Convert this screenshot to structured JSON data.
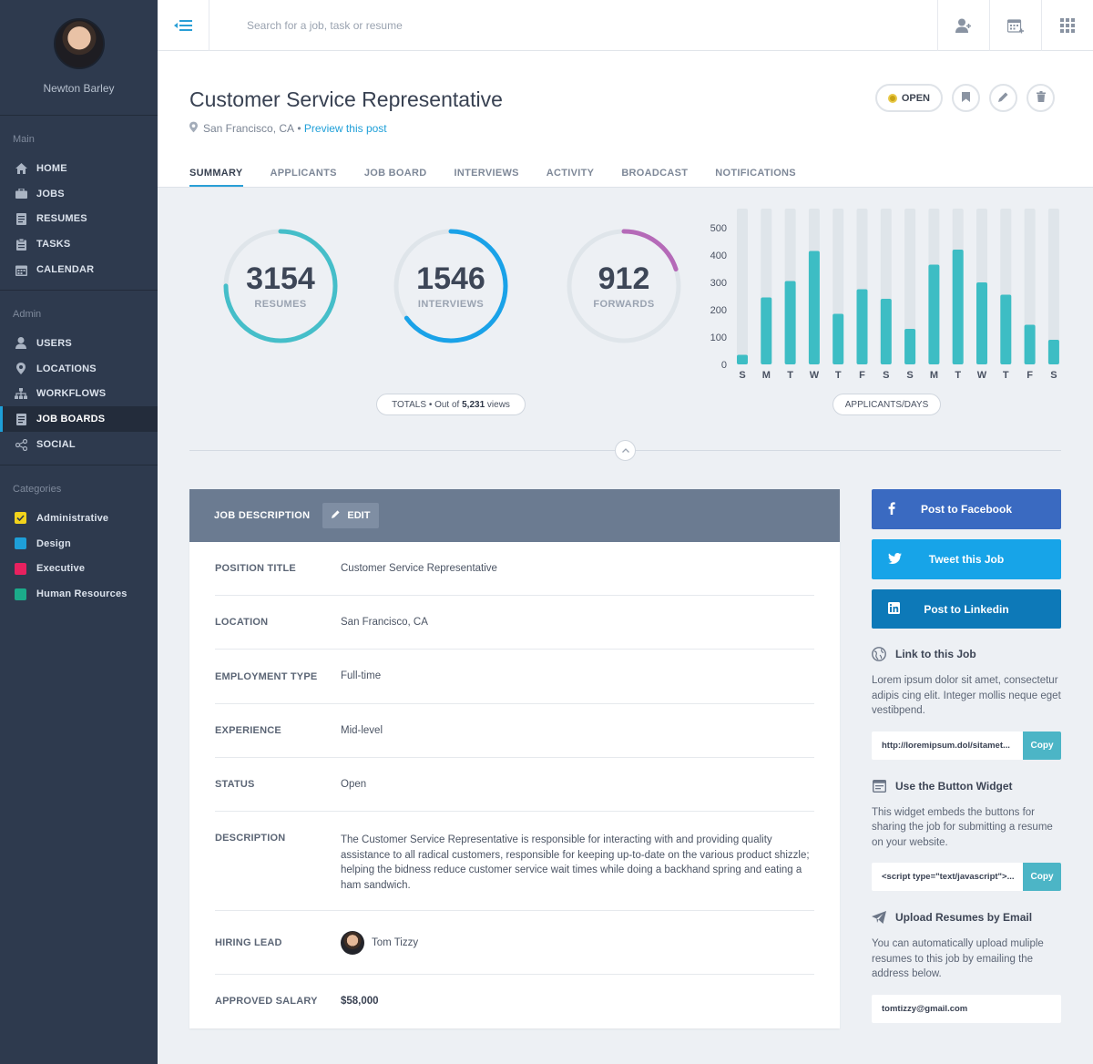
{
  "sidebar": {
    "user_name": "Newton Barley",
    "sections": {
      "main": {
        "heading": "Main",
        "items": [
          {
            "label": "HOME",
            "icon": "home-icon"
          },
          {
            "label": "JOBS",
            "icon": "briefcase-icon"
          },
          {
            "label": "RESUMES",
            "icon": "document-icon"
          },
          {
            "label": "TASKS",
            "icon": "clipboard-icon"
          },
          {
            "label": "CALENDAR",
            "icon": "calendar-icon"
          }
        ]
      },
      "admin": {
        "heading": "Admin",
        "items": [
          {
            "label": "USERS",
            "icon": "user-icon"
          },
          {
            "label": "LOCATIONS",
            "icon": "location-pin-icon"
          },
          {
            "label": "WORKFLOWS",
            "icon": "sitemap-icon"
          },
          {
            "label": "JOB BOARDS",
            "icon": "document-icon",
            "active": true
          },
          {
            "label": "SOCIAL",
            "icon": "share-icon"
          }
        ]
      },
      "categories": {
        "heading": "Categories",
        "items": [
          {
            "label": "Administrative",
            "color": "#f2d31b",
            "checked": true
          },
          {
            "label": "Design",
            "color": "#1e9fd8"
          },
          {
            "label": "Executive",
            "color": "#e8215f"
          },
          {
            "label": "Human Resources",
            "color": "#1bab8a"
          }
        ]
      }
    }
  },
  "topbar": {
    "search_placeholder": "Search for a job, task or resume",
    "icons": [
      "add-user-icon",
      "add-calendar-icon",
      "apps-grid-icon"
    ]
  },
  "header": {
    "title": "Customer Service Representative",
    "location": "San Francisco, CA",
    "separator": " • ",
    "preview_link": "Preview this post",
    "status_label": "OPEN",
    "tabs": [
      "SUMMARY",
      "APPLICANTS",
      "JOB BOARD",
      "INTERVIEWS",
      "ACTIVITY",
      "BROADCAST",
      "NOTIFICATIONS"
    ],
    "active_tab": "SUMMARY"
  },
  "stats": {
    "gauges": [
      {
        "value": "3154",
        "label": "RESUMES",
        "fraction": 0.75,
        "color": "#45bec9"
      },
      {
        "value": "1546",
        "label": "INTERVIEWS",
        "fraction": 0.65,
        "color": "#1aa2e8"
      },
      {
        "value": "912",
        "label": "FORWARDS",
        "fraction": 0.2,
        "color": "#b56ab8"
      }
    ],
    "totals_prefix": "TOTALS • Out of ",
    "totals_views": "5,231",
    "totals_suffix": " views",
    "chart_pill": "APPLICANTS/DAYS",
    "colors": {
      "bar": "#3dbdc4",
      "track": "#dfe5ea"
    }
  },
  "chart_data": {
    "type": "bar",
    "categories": [
      "S",
      "M",
      "T",
      "W",
      "T",
      "F",
      "S",
      "S",
      "M",
      "T",
      "W",
      "T",
      "F",
      "S"
    ],
    "values": [
      35,
      245,
      305,
      415,
      185,
      275,
      240,
      130,
      365,
      420,
      300,
      255,
      145,
      90
    ],
    "ylim": [
      0,
      570
    ],
    "yticks": [
      500,
      400,
      300,
      200,
      100,
      0
    ],
    "xlabel": "",
    "ylabel": ""
  },
  "job_description": {
    "title": "JOB DESCRIPTION",
    "edit_label": "EDIT",
    "rows": [
      {
        "key": "POSITION TITLE",
        "value": "Customer Service Representative"
      },
      {
        "key": "LOCATION",
        "value": "San Francisco, CA"
      },
      {
        "key": "EMPLOYMENT TYPE",
        "value": "Full-time"
      },
      {
        "key": "EXPERIENCE",
        "value": "Mid-level"
      },
      {
        "key": "STATUS",
        "value": "Open"
      },
      {
        "key": "DESCRIPTION",
        "value": "The Customer Service Representative is responsible for interacting with and providing quality assistance to all radical customers, responsible for keeping up-to-date on the various product shizzle; helping the bidness reduce customer service wait times while doing a backhand spring and eating a ham sandwich."
      },
      {
        "key": "HIRING LEAD",
        "value": "Tom Tizzy"
      },
      {
        "key": "APPROVED SALARY",
        "value": "$58,000"
      }
    ]
  },
  "share": {
    "facebook": "Post to Facebook",
    "twitter": "Tweet this Job",
    "linkedin": "Post to Linkedin",
    "link": {
      "title": "Link to this Job",
      "text": "Lorem ipsum dolor sit amet, consectetur adipis cing elit. Integer mollis neque eget vestibpend.",
      "url": "http://loremipsum.dol/sitamet...",
      "copy": "Copy"
    },
    "widget": {
      "title": "Use the Button Widget",
      "text": "This widget embeds the buttons for sharing the job for submitting a resume on your website.",
      "code": "<script type=\"text/javascript\">...",
      "copy": "Copy"
    },
    "email": {
      "title": "Upload Resumes by Email",
      "text": "You can automatically upload muliple resumes to this job by emailing the address below.",
      "address": "tomtizzy@gmail.com"
    }
  }
}
